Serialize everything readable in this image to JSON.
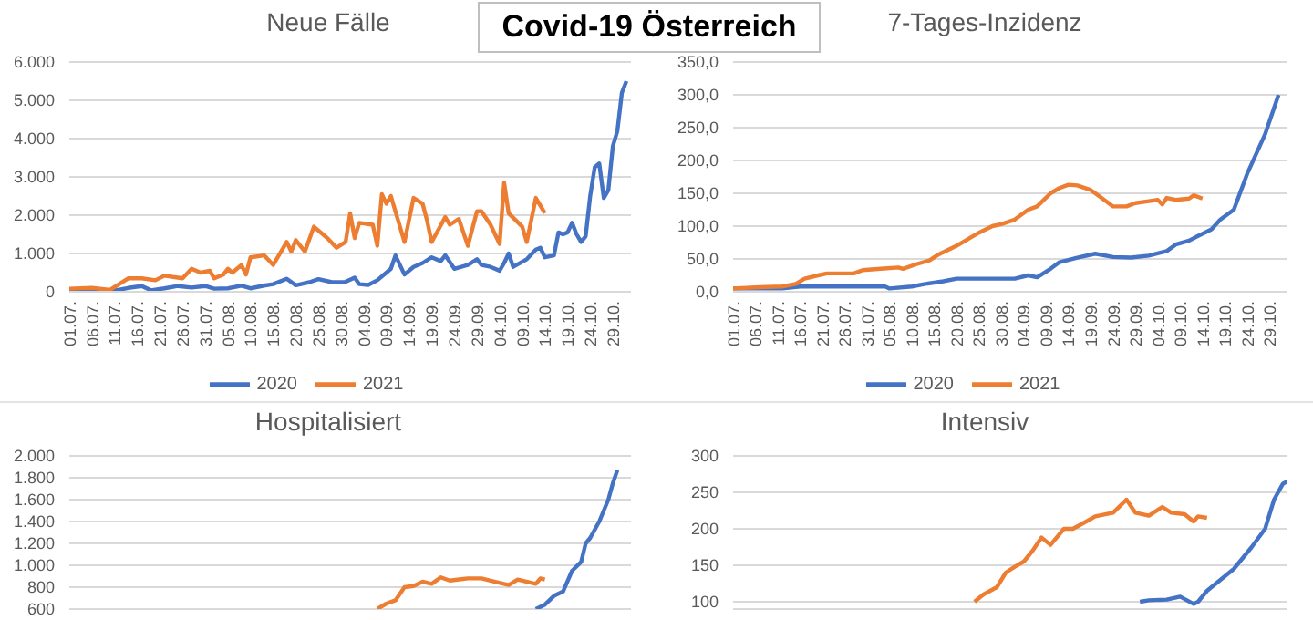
{
  "chart_data": [
    {
      "type": "other",
      "title": "Covid-19 Österreich"
    },
    {
      "type": "line",
      "title": "Neue Fälle",
      "xlim": [
        "--07-01",
        "--11-02"
      ],
      "xticks": [
        {
          "value": "--07-01",
          "label": "01.07."
        },
        {
          "value": "--07-06",
          "label": "06.07."
        },
        {
          "value": "--07-11",
          "label": "11.07."
        },
        {
          "value": "--07-16",
          "label": "16.07."
        },
        {
          "value": "--07-21",
          "label": "21.07."
        },
        {
          "value": "--07-26",
          "label": "26.07."
        },
        {
          "value": "--07-31",
          "label": "31.07."
        },
        {
          "value": "--08-05",
          "label": "05.08."
        },
        {
          "value": "--08-10",
          "label": "10.08."
        },
        {
          "value": "--08-15",
          "label": "15.08."
        },
        {
          "value": "--08-20",
          "label": "20.08."
        },
        {
          "value": "--08-25",
          "label": "25.08."
        },
        {
          "value": "--08-30",
          "label": "30.08."
        },
        {
          "value": "--09-04",
          "label": "04.09."
        },
        {
          "value": "--09-09",
          "label": "09.09."
        },
        {
          "value": "--09-14",
          "label": "14.09."
        },
        {
          "value": "--09-19",
          "label": "19.09."
        },
        {
          "value": "--09-24",
          "label": "24.09."
        },
        {
          "value": "--09-29",
          "label": "29.09."
        },
        {
          "value": "--10-04",
          "label": "04.10."
        },
        {
          "value": "--10-09",
          "label": "09.10."
        },
        {
          "value": "--10-14",
          "label": "14.10."
        },
        {
          "value": "--10-19",
          "label": "19.10."
        },
        {
          "value": "--10-24",
          "label": "24.10."
        },
        {
          "value": "--10-29",
          "label": "29.10."
        }
      ],
      "ylim": [
        0,
        6000
      ],
      "yticks": [
        0,
        {
          "value": 1000,
          "label": "1.000"
        },
        {
          "value": 2000,
          "label": "2.000"
        },
        {
          "value": 3000,
          "label": "3.000"
        },
        {
          "value": 4000,
          "label": "4.000"
        },
        {
          "value": 5000,
          "label": "5.000"
        },
        {
          "value": 6000,
          "label": "6.000"
        }
      ],
      "grid": "y",
      "legend": "bottom",
      "marker": "none",
      "line_style": "solid",
      "series": [
        {
          "name": "2020",
          "color": "#4472c4",
          "x": [
            "--07-01",
            "--07-06",
            "--07-11",
            "--07-14",
            "--07-17",
            "--07-19",
            "--07-22",
            "--07-25",
            "--07-28",
            "--07-31",
            "--08-02",
            "--08-05",
            "--08-08",
            "--08-10",
            "--08-13",
            "--08-15",
            "--08-18",
            "--08-20",
            "--08-23",
            "--08-25",
            "--08-28",
            "--08-31",
            "--09-02",
            "--09-03",
            "--09-05",
            "--09-07",
            "--09-09",
            "--09-10",
            "--09-11",
            "--09-13",
            "--09-15",
            "--09-17",
            "--09-19",
            "--09-21",
            "--09-22",
            "--09-24",
            "--09-27",
            "--09-29",
            "--09-30",
            "--10-02",
            "--10-04",
            "--10-05",
            "--10-06",
            "--10-07",
            "--10-10",
            "--10-12",
            "--10-13",
            "--10-14",
            "--10-16",
            "--10-17",
            "--10-18",
            "--10-19",
            "--10-20",
            "--10-21",
            "--10-22",
            "--10-23",
            "--10-24",
            "--10-25",
            "--10-26",
            "--10-27",
            "--10-28",
            "--10-29",
            "--10-30",
            "--10-31",
            "--11-01"
          ],
          "values": [
            60,
            60,
            30,
            100,
            150,
            40,
            90,
            150,
            110,
            150,
            80,
            90,
            160,
            90,
            160,
            200,
            340,
            170,
            250,
            330,
            250,
            260,
            370,
            200,
            180,
            300,
            500,
            600,
            950,
            450,
            650,
            750,
            900,
            800,
            950,
            600,
            700,
            850,
            700,
            650,
            550,
            750,
            1000,
            650,
            850,
            1100,
            1150,
            900,
            950,
            1550,
            1500,
            1550,
            1800,
            1500,
            1300,
            1450,
            2500,
            3250,
            3350,
            2450,
            2650,
            3800,
            4200,
            5200,
            5500
          ]
        },
        {
          "name": "2021",
          "color": "#ed7d31",
          "x": [
            "--07-01",
            "--07-06",
            "--07-10",
            "--07-12",
            "--07-14",
            "--07-17",
            "--07-20",
            "--07-22",
            "--07-26",
            "--07-28",
            "--07-30",
            "--08-01",
            "--08-02",
            "--08-04",
            "--08-05",
            "--08-06",
            "--08-08",
            "--08-09",
            "--08-10",
            "--08-13",
            "--08-15",
            "--08-18",
            "--08-19",
            "--08-20",
            "--08-22",
            "--08-24",
            "--08-27",
            "--08-29",
            "--08-31",
            "--09-01",
            "--09-02",
            "--09-03",
            "--09-06",
            "--09-07",
            "--09-08",
            "--09-09",
            "--09-10",
            "--09-11",
            "--09-13",
            "--09-15",
            "--09-17",
            "--09-18",
            "--09-19",
            "--09-22",
            "--09-23",
            "--09-25",
            "--09-27",
            "--09-29",
            "--09-30",
            "--10-02",
            "--10-04",
            "--10-05",
            "--10-06",
            "--10-09",
            "--10-10",
            "--10-12",
            "--10-14"
          ],
          "values": [
            80,
            100,
            50,
            200,
            350,
            350,
            300,
            420,
            350,
            600,
            500,
            550,
            350,
            450,
            600,
            500,
            700,
            450,
            900,
            950,
            700,
            1300,
            1050,
            1350,
            1050,
            1700,
            1400,
            1150,
            1300,
            2050,
            1400,
            1800,
            1750,
            1200,
            2550,
            2300,
            2500,
            2100,
            1300,
            2450,
            2300,
            1850,
            1300,
            1950,
            1750,
            1900,
            1200,
            2100,
            2100,
            1750,
            1250,
            2850,
            2050,
            1700,
            1300,
            2450,
            2050
          ]
        }
      ]
    },
    {
      "type": "line",
      "title": "7-Tages-Inzidenz",
      "xlim": [
        "--07-01",
        "--11-02"
      ],
      "xticks": [
        {
          "value": "--07-01",
          "label": "01.07."
        },
        {
          "value": "--07-06",
          "label": "06.07."
        },
        {
          "value": "--07-11",
          "label": "11.07."
        },
        {
          "value": "--07-16",
          "label": "16.07."
        },
        {
          "value": "--07-21",
          "label": "21.07."
        },
        {
          "value": "--07-26",
          "label": "26.07."
        },
        {
          "value": "--07-31",
          "label": "31.07."
        },
        {
          "value": "--08-05",
          "label": "05.08."
        },
        {
          "value": "--08-10",
          "label": "10.08."
        },
        {
          "value": "--08-15",
          "label": "15.08."
        },
        {
          "value": "--08-20",
          "label": "20.08."
        },
        {
          "value": "--08-25",
          "label": "25.08."
        },
        {
          "value": "--08-30",
          "label": "30.08."
        },
        {
          "value": "--09-04",
          "label": "04.09."
        },
        {
          "value": "--09-09",
          "label": "09.09."
        },
        {
          "value": "--09-14",
          "label": "14.09."
        },
        {
          "value": "--09-19",
          "label": "19.09."
        },
        {
          "value": "--09-24",
          "label": "24.09."
        },
        {
          "value": "--09-29",
          "label": "29.09."
        },
        {
          "value": "--10-04",
          "label": "04.10."
        },
        {
          "value": "--10-09",
          "label": "09.10."
        },
        {
          "value": "--10-14",
          "label": "14.10."
        },
        {
          "value": "--10-19",
          "label": "19.10."
        },
        {
          "value": "--10-24",
          "label": "24.10."
        },
        {
          "value": "--10-29",
          "label": "29.10."
        }
      ],
      "ylim": [
        0,
        350
      ],
      "yticks": [
        {
          "value": 0,
          "label": "0,0"
        },
        {
          "value": 50,
          "label": "50,0"
        },
        {
          "value": 100,
          "label": "100,0"
        },
        {
          "value": 150,
          "label": "150,0"
        },
        {
          "value": 200,
          "label": "200,0"
        },
        {
          "value": 250,
          "label": "250,0"
        },
        {
          "value": 300,
          "label": "300,0"
        },
        {
          "value": 350,
          "label": "350,0"
        }
      ],
      "grid": "y",
      "legend": "bottom",
      "marker": "none",
      "line_style": "solid",
      "series": [
        {
          "name": "2020",
          "color": "#4472c4",
          "x": [
            "--07-01",
            "--07-12",
            "--07-16",
            "--07-31",
            "--08-04",
            "--08-05",
            "--08-10",
            "--08-13",
            "--08-17",
            "--08-20",
            "--08-29",
            "--09-02",
            "--09-05",
            "--09-07",
            "--09-10",
            "--09-12",
            "--09-16",
            "--09-20",
            "--09-24",
            "--09-28",
            "--10-02",
            "--10-06",
            "--10-08",
            "--10-11",
            "--10-13",
            "--10-16",
            "--10-18",
            "--10-21",
            "--10-24",
            "--10-25",
            "--10-28",
            "--10-31"
          ],
          "values": [
            5,
            5,
            8,
            8,
            8,
            5,
            8,
            12,
            16,
            20,
            20,
            20,
            25,
            22,
            35,
            45,
            52,
            58,
            53,
            52,
            55,
            62,
            72,
            78,
            85,
            95,
            110,
            125,
            180,
            195,
            240,
            300
          ]
        },
        {
          "name": "2021",
          "color": "#ed7d31",
          "x": [
            "--07-01",
            "--07-07",
            "--07-12",
            "--07-15",
            "--07-17",
            "--07-20",
            "--07-22",
            "--07-28",
            "--07-30",
            "--08-03",
            "--08-07",
            "--08-08",
            "--08-11",
            "--08-14",
            "--08-16",
            "--08-20",
            "--08-23",
            "--08-25",
            "--08-28",
            "--08-30",
            "--09-02",
            "--09-05",
            "--09-07",
            "--09-10",
            "--09-12",
            "--09-14",
            "--09-16",
            "--09-19",
            "--09-21",
            "--09-24",
            "--09-27",
            "--09-29",
            "--10-02",
            "--10-04",
            "--10-05",
            "--10-06",
            "--10-08",
            "--10-11",
            "--10-12",
            "--10-14"
          ],
          "values": [
            5,
            7,
            8,
            12,
            20,
            25,
            28,
            28,
            33,
            35,
            37,
            35,
            42,
            48,
            57,
            70,
            82,
            90,
            100,
            103,
            110,
            125,
            130,
            150,
            158,
            163,
            162,
            155,
            145,
            130,
            130,
            135,
            138,
            140,
            133,
            143,
            140,
            142,
            147,
            142
          ]
        }
      ]
    },
    {
      "type": "line",
      "title": "Hospitalisiert",
      "xlim": [
        "--07-01",
        "--11-02"
      ],
      "tick_labels": "y",
      "ylim": [
        600,
        2000
      ],
      "yticks": [
        600,
        800,
        {
          "value": 1000,
          "label": "1.000"
        },
        {
          "value": 1200,
          "label": "1.200"
        },
        {
          "value": 1400,
          "label": "1.400"
        },
        {
          "value": 1600,
          "label": "1.600"
        },
        {
          "value": 1800,
          "label": "1.800"
        },
        {
          "value": 2000,
          "label": "2.000"
        }
      ],
      "grid": "y",
      "marker": "none",
      "line_style": "solid",
      "series": [
        {
          "color": "#4472c4",
          "x": [
            "--10-12",
            "--10-14",
            "--10-16",
            "--10-18",
            "--10-20",
            "--10-22",
            "--10-23",
            "--10-24",
            "--10-26",
            "--10-28",
            "--10-29",
            "--10-30"
          ],
          "values": [
            600,
            640,
            720,
            760,
            950,
            1030,
            1200,
            1250,
            1400,
            1600,
            1750,
            1870
          ]
        },
        {
          "color": "#ed7d31",
          "x": [
            "--09-07",
            "--09-09",
            "--09-11",
            "--09-13",
            "--09-15",
            "--09-17",
            "--09-19",
            "--09-21",
            "--09-23",
            "--09-27",
            "--09-30",
            "--10-02",
            "--10-06",
            "--10-08",
            "--10-12",
            "--10-13",
            "--10-14"
          ],
          "values": [
            600,
            650,
            680,
            800,
            810,
            850,
            830,
            890,
            860,
            880,
            880,
            860,
            820,
            870,
            830,
            880,
            870
          ]
        }
      ]
    },
    {
      "type": "line",
      "title": "Intensiv",
      "xlim": [
        "--07-01",
        "--11-02"
      ],
      "tick_labels": "y",
      "ylim": [
        90,
        300
      ],
      "yticks": [
        100,
        150,
        200,
        250,
        300
      ],
      "grid": "y",
      "marker": "none",
      "line_style": "solid",
      "series": [
        {
          "color": "#4472c4",
          "x": [
            "--09-30",
            "--10-02",
            "--10-06",
            "--10-09",
            "--10-12",
            "--10-13",
            "--10-15",
            "--10-18",
            "--10-21",
            "--10-23",
            "--10-25",
            "--10-28",
            "--10-30",
            "--11-01",
            "--11-02"
          ],
          "values": [
            100,
            102,
            103,
            107,
            97,
            100,
            115,
            130,
            145,
            160,
            175,
            200,
            240,
            262,
            265
          ]
        },
        {
          "color": "#ed7d31",
          "x": [
            "--08-24",
            "--08-26",
            "--08-29",
            "--08-31",
            "--09-02",
            "--09-04",
            "--09-06",
            "--09-08",
            "--09-10",
            "--09-13",
            "--09-15",
            "--09-18",
            "--09-20",
            "--09-24",
            "--09-27",
            "--09-29",
            "--10-02",
            "--10-05",
            "--10-07",
            "--10-10",
            "--10-12",
            "--10-13",
            "--10-15"
          ],
          "values": [
            100,
            110,
            120,
            140,
            148,
            155,
            170,
            188,
            178,
            200,
            200,
            210,
            217,
            222,
            240,
            222,
            218,
            230,
            222,
            220,
            210,
            217,
            215
          ]
        }
      ]
    }
  ]
}
